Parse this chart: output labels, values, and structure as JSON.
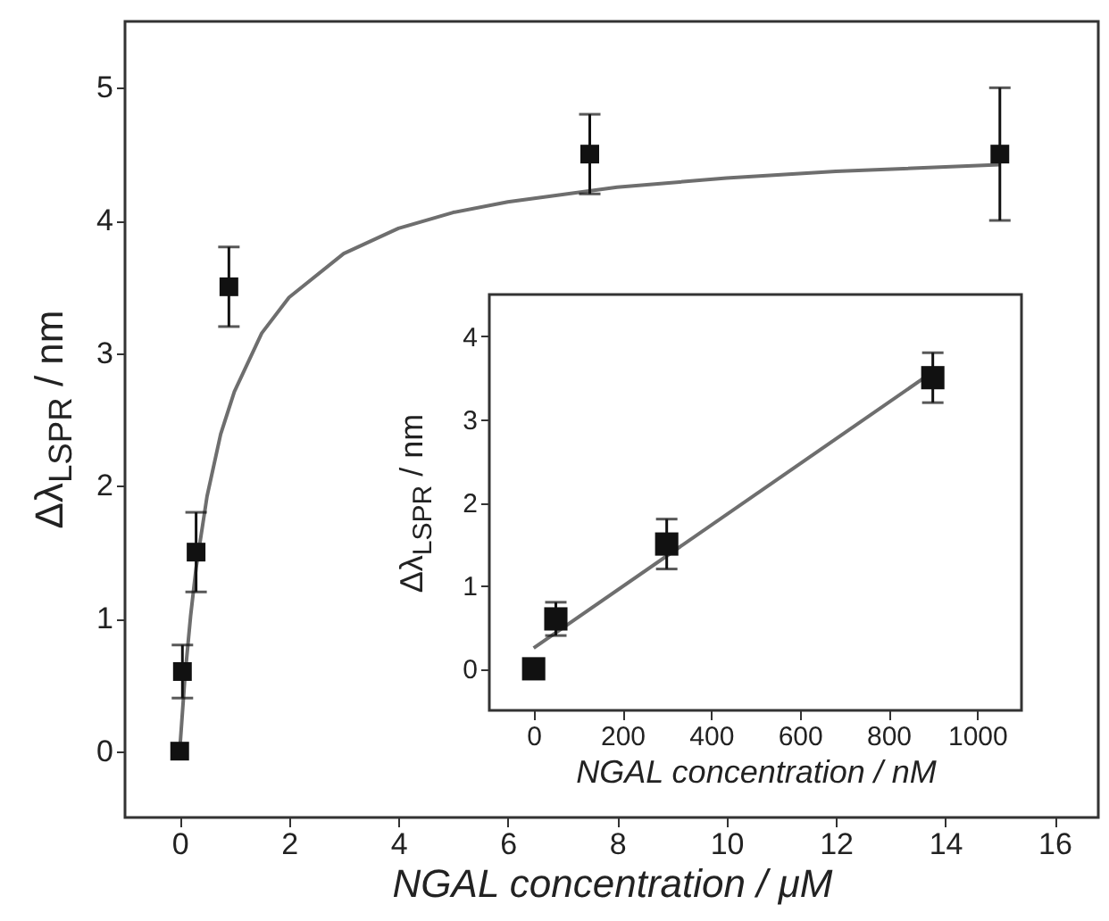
{
  "chart_data": [
    {
      "type": "scatter",
      "xlabel": "NGAL concentration / μM",
      "ylabel": "Δλ$_{LSPR}$ / nm",
      "xlim": [
        -1,
        16.8
      ],
      "ylim": [
        -0.5,
        5.5
      ],
      "xticks": [
        0,
        2,
        4,
        6,
        8,
        10,
        12,
        14,
        16
      ],
      "yticks": [
        0,
        1,
        2,
        3,
        4,
        5
      ],
      "grid": false,
      "series": [
        {
          "type": "line",
          "color": "#6e6e6e",
          "x": [
            0,
            0.1,
            0.2,
            0.3,
            0.5,
            0.75,
            1,
            1.5,
            2,
            3,
            4,
            5,
            6,
            8,
            10,
            12,
            15
          ],
          "values": [
            0,
            0.58,
            1.02,
            1.38,
            1.92,
            2.39,
            2.71,
            3.15,
            3.42,
            3.75,
            3.94,
            4.06,
            4.14,
            4.25,
            4.32,
            4.37,
            4.42
          ]
        },
        {
          "marker": "square",
          "color": "#111111",
          "x": [
            0,
            0.05,
            0.3,
            0.9,
            7.5,
            15
          ],
          "values": [
            0,
            0.6,
            1.5,
            3.5,
            4.5,
            4.5
          ],
          "errors": [
            null,
            0.2,
            0.3,
            0.3,
            0.3,
            0.5
          ]
        }
      ]
    },
    {
      "type": "scatter",
      "xlabel": "NGAL concentration / nM",
      "ylabel": "Δλ$_{LSPR}$ / nm",
      "xlim": [
        -100,
        1100
      ],
      "ylim": [
        -0.5,
        4.5
      ],
      "xticks": [
        0,
        200,
        400,
        600,
        800,
        1000
      ],
      "yticks": [
        0,
        1,
        2,
        3,
        4
      ],
      "grid": false,
      "series": [
        {
          "type": "line",
          "color": "#6e6e6e",
          "x": [
            0,
            900
          ],
          "values": [
            0.25,
            3.57
          ]
        },
        {
          "marker": "square",
          "color": "#111111",
          "x": [
            0,
            50,
            300,
            900
          ],
          "values": [
            0,
            0.6,
            1.5,
            3.5
          ],
          "errors": [
            null,
            0.2,
            0.3,
            0.3
          ]
        }
      ]
    }
  ]
}
